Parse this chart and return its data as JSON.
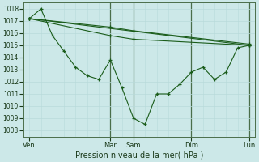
{
  "background_color": "#cce8e8",
  "grid_color_minor": "#b8dada",
  "grid_color_major": "#a0c8c8",
  "vline_color": "#4a6e4a",
  "line_color": "#1a5c1a",
  "xlabel": "Pression niveau de la mer( hPa )",
  "ylim": [
    1007.5,
    1018.5
  ],
  "yticks": [
    1008,
    1009,
    1010,
    1011,
    1012,
    1013,
    1014,
    1015,
    1016,
    1017,
    1018
  ],
  "xtick_labels": [
    "Ven",
    "Mar",
    "Sam",
    "Dim",
    "Lun"
  ],
  "xtick_positions": [
    0,
    7,
    9,
    14,
    19
  ],
  "vline_positions": [
    7,
    9,
    14,
    19
  ],
  "series": [
    {
      "x": [
        0,
        19
      ],
      "y": [
        1017.2,
        1015.0
      ],
      "marker": "+"
    },
    {
      "x": [
        0,
        7,
        9,
        19
      ],
      "y": [
        1017.2,
        1016.5,
        1016.2,
        1015.1
      ],
      "marker": "+"
    },
    {
      "x": [
        0,
        7,
        9,
        19
      ],
      "y": [
        1017.2,
        1015.8,
        1015.5,
        1015.0
      ],
      "marker": "+"
    },
    {
      "x": [
        0,
        1,
        2,
        3,
        4,
        5,
        6,
        7,
        8,
        9,
        10,
        11,
        12,
        13,
        14,
        15,
        16,
        17,
        18,
        19
      ],
      "y": [
        1017.2,
        1018.0,
        1015.8,
        1014.5,
        1013.2,
        1012.5,
        1012.2,
        1013.8,
        1011.5,
        1009.0,
        1008.5,
        1011.0,
        1011.0,
        1011.8,
        1012.8,
        1013.2,
        1012.2,
        1012.8,
        1014.8,
        1015.0
      ],
      "marker": "+"
    }
  ]
}
